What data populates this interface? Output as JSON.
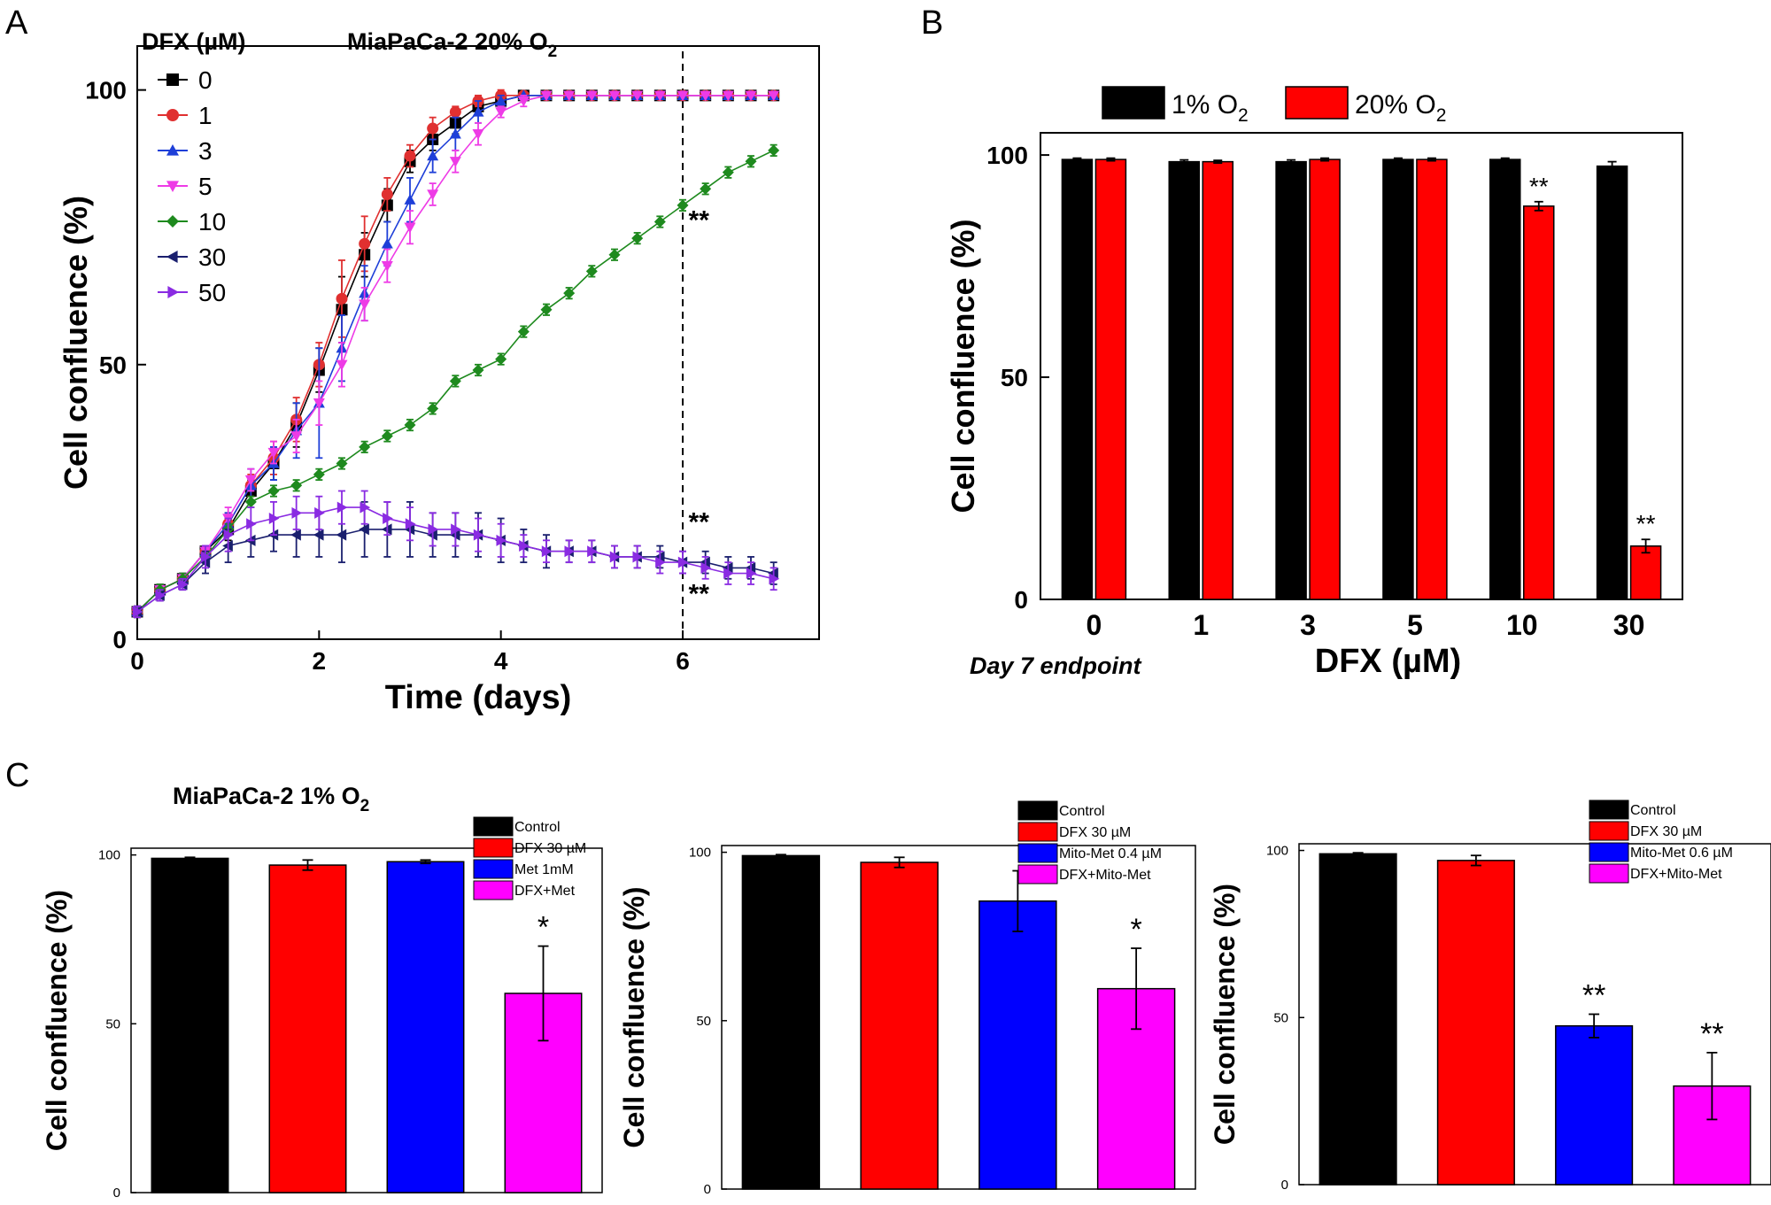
{
  "panel_letters": [
    "A",
    "B",
    "C"
  ],
  "chart_data": [
    {
      "id": "A",
      "type": "line",
      "title": "MiaPaCa-2  20% O",
      "title_subscript": "2",
      "xlabel": "Time (days)",
      "ylabel": "Cell confluence (%)",
      "xlim": [
        0,
        7.5
      ],
      "ylim": [
        0,
        108
      ],
      "xticks": [
        0,
        2,
        4,
        6
      ],
      "yticks": [
        0,
        50,
        100
      ],
      "legend_title": "DFX (µM)",
      "legend_position": "top-left",
      "vline_x": 6,
      "annotations": [
        {
          "text": "**",
          "x": 6.2,
          "y": 76
        },
        {
          "text": "**",
          "x": 6.2,
          "y": 21
        },
        {
          "text": "**",
          "x": 6.2,
          "y": 8
        }
      ],
      "x": [
        0,
        0.25,
        0.5,
        0.75,
        1,
        1.25,
        1.5,
        1.75,
        2,
        2.25,
        2.5,
        2.75,
        3,
        3.25,
        3.5,
        3.75,
        4,
        4.25,
        4.5,
        4.75,
        5,
        5.25,
        5.5,
        5.75,
        6,
        6.25,
        6.5,
        6.75,
        7
      ],
      "series": [
        {
          "name": "0",
          "color": "#000000",
          "marker": "square",
          "values": [
            5,
            9,
            11,
            16,
            20,
            27,
            32,
            39,
            49,
            60,
            70,
            79,
            87,
            91,
            94,
            97,
            98,
            99,
            99,
            99,
            99,
            99,
            99,
            99,
            99,
            99,
            99,
            99,
            99
          ],
          "errors": [
            1,
            1,
            1,
            1,
            2,
            2,
            3,
            4,
            4,
            6,
            4,
            3,
            2,
            2,
            2,
            1,
            1,
            0.5,
            0.5,
            0.5,
            0.5,
            0.5,
            0.5,
            0.5,
            0.5,
            0.5,
            0.5,
            0.5,
            0.5
          ]
        },
        {
          "name": "1",
          "color": "#e03030",
          "marker": "circle",
          "values": [
            5,
            9,
            11,
            16,
            21,
            28,
            33,
            40,
            50,
            62,
            72,
            81,
            88,
            93,
            96,
            98,
            99,
            99,
            99,
            99,
            99,
            99,
            99,
            99,
            99,
            99,
            99,
            99,
            99
          ],
          "errors": [
            1,
            1,
            1,
            1,
            2,
            2,
            3,
            4,
            4,
            7,
            5,
            3,
            2,
            2,
            1,
            1,
            1,
            0.5,
            0.5,
            0.5,
            0.5,
            0.5,
            0.5,
            0.5,
            0.5,
            0.5,
            0.5,
            0.5,
            0.5
          ]
        },
        {
          "name": "3",
          "color": "#1e3fd8",
          "marker": "triangle-up",
          "values": [
            5,
            9,
            11,
            16,
            21,
            28,
            32,
            38,
            43,
            53,
            63,
            72,
            80,
            88,
            92,
            96,
            98,
            99,
            99,
            99,
            99,
            99,
            99,
            99,
            99,
            99,
            99,
            99,
            99
          ],
          "errors": [
            1,
            1,
            1,
            1,
            2,
            3,
            3,
            5,
            10,
            6,
            5,
            4,
            4,
            3,
            3,
            2,
            1,
            0.5,
            0.5,
            0.5,
            0.5,
            0.5,
            0.5,
            0.5,
            0.5,
            0.5,
            0.5,
            0.5,
            0.5
          ]
        },
        {
          "name": "5",
          "color": "#ee3be6",
          "marker": "triangle-down",
          "values": [
            5,
            9,
            11,
            16,
            22,
            29,
            34,
            37,
            43,
            50,
            61,
            68,
            75,
            81,
            87,
            92,
            96,
            98,
            99,
            99,
            99,
            99,
            99,
            99,
            99,
            99,
            99,
            99,
            99
          ],
          "errors": [
            1,
            1,
            1,
            1,
            2,
            2,
            2,
            3,
            4,
            4,
            3,
            3,
            3,
            2,
            2,
            2,
            1,
            1,
            0.5,
            0.5,
            0.5,
            0.5,
            0.5,
            0.5,
            0.5,
            0.5,
            0.5,
            0.5,
            0.5
          ]
        },
        {
          "name": "10",
          "color": "#1e8a1e",
          "marker": "diamond",
          "values": [
            5,
            9,
            11,
            15,
            20,
            25,
            27,
            28,
            30,
            32,
            35,
            37,
            39,
            42,
            47,
            49,
            51,
            56,
            60,
            63,
            67,
            70,
            73,
            76,
            79,
            82,
            85,
            87,
            89
          ],
          "errors": [
            1,
            1,
            1,
            1,
            1,
            1,
            1,
            1,
            1,
            1,
            1,
            1,
            1,
            1,
            1,
            1,
            1,
            1,
            1,
            1,
            1,
            1,
            1,
            1,
            1,
            1,
            1,
            1,
            1
          ]
        },
        {
          "name": "30",
          "color": "#1a1f6e",
          "marker": "triangle-left",
          "values": [
            5,
            8,
            10,
            14,
            17,
            18,
            19,
            19,
            19,
            19,
            20,
            20,
            20,
            19,
            19,
            19,
            18,
            17,
            16,
            16,
            16,
            15,
            15,
            15,
            14,
            14,
            13,
            13,
            12
          ],
          "errors": [
            1,
            1,
            1,
            2,
            3,
            3,
            3,
            4,
            4,
            5,
            5,
            5,
            5,
            4,
            4,
            4,
            4,
            3,
            3,
            2,
            2,
            2,
            2,
            2,
            2,
            2,
            2,
            2,
            2
          ]
        },
        {
          "name": "50",
          "color": "#8a2be2",
          "marker": "triangle-right",
          "values": [
            5,
            8,
            10,
            15,
            19,
            21,
            22,
            23,
            23,
            24,
            24,
            22,
            21,
            20,
            20,
            19,
            18,
            17,
            16,
            16,
            16,
            15,
            15,
            14,
            14,
            13,
            12,
            12,
            11
          ],
          "errors": [
            1,
            1,
            1,
            2,
            3,
            3,
            3,
            3,
            3,
            3,
            3,
            3,
            3,
            3,
            3,
            3,
            3,
            2,
            2,
            2,
            2,
            2,
            2,
            2,
            2,
            2,
            2,
            2,
            2
          ]
        }
      ]
    },
    {
      "id": "B",
      "type": "bar",
      "xlabel": "DFX (µM)",
      "ylabel": "Cell confluence (%)",
      "footnote": "Day 7 endpoint",
      "ylim": [
        0,
        105
      ],
      "yticks": [
        0,
        50,
        100
      ],
      "categories": [
        "0",
        "1",
        "3",
        "5",
        "10",
        "30"
      ],
      "legend_position": "top",
      "series": [
        {
          "name": "1% O",
          "name_subscript": "2",
          "color": "#000000",
          "values": [
            99,
            98.5,
            98.5,
            99,
            99,
            97.5
          ],
          "errors": [
            0.3,
            0.4,
            0.4,
            0.3,
            0.3,
            1
          ]
        },
        {
          "name": "20% O",
          "name_subscript": "2",
          "color": "#ff0000",
          "values": [
            99,
            98.5,
            99,
            99,
            88.5,
            12
          ],
          "errors": [
            0.3,
            0.3,
            0.3,
            0.3,
            1,
            1.5
          ]
        }
      ],
      "significance": [
        {
          "category": 4,
          "series": 1,
          "text": "**"
        },
        {
          "category": 5,
          "series": 1,
          "text": "**"
        }
      ]
    },
    {
      "id": "C1",
      "type": "bar",
      "title": "MiaPaCa-2   1% O",
      "title_subscript": "2",
      "ylabel": "Cell confluence (%)",
      "ylim": [
        0,
        102
      ],
      "yticks": [
        0,
        50,
        100
      ],
      "legend_position": "top-right",
      "categories": [
        "Control",
        "DFX 30 µM",
        "Met 1mM",
        "DFX+Met"
      ],
      "colors": [
        "#000000",
        "#ff0000",
        "#0000ff",
        "#ff00ff"
      ],
      "values": [
        99,
        97,
        98,
        59
      ],
      "errors": [
        0.3,
        1.5,
        0.5,
        14
      ],
      "significance": [
        null,
        null,
        null,
        "*"
      ]
    },
    {
      "id": "C2",
      "type": "bar",
      "ylabel": "Cell confluence (%)",
      "ylim": [
        0,
        102
      ],
      "yticks": [
        0,
        50,
        100
      ],
      "legend_position": "top-right",
      "categories": [
        "Control",
        "DFX 30 µM",
        "Mito-Met 0.4 µM",
        "DFX+Mito-Met"
      ],
      "colors": [
        "#000000",
        "#ff0000",
        "#0000ff",
        "#ff00ff"
      ],
      "values": [
        99,
        97,
        85.5,
        59.5
      ],
      "errors": [
        0.3,
        1.5,
        9,
        12
      ],
      "significance": [
        null,
        null,
        null,
        "*"
      ]
    },
    {
      "id": "C3",
      "type": "bar",
      "ylabel": "Cell confluence (%)",
      "ylim": [
        0,
        102
      ],
      "yticks": [
        0,
        50,
        100
      ],
      "legend_position": "top-right",
      "categories": [
        "Control",
        "DFX 30 µM",
        "Mito-Met 0.6 µM",
        "DFX+Mito-Met"
      ],
      "colors": [
        "#000000",
        "#ff0000",
        "#0000ff",
        "#ff00ff"
      ],
      "values": [
        99,
        97,
        47.5,
        29.5
      ],
      "errors": [
        0.3,
        1.5,
        3.5,
        10
      ],
      "significance": [
        null,
        null,
        "**",
        "**"
      ]
    }
  ]
}
